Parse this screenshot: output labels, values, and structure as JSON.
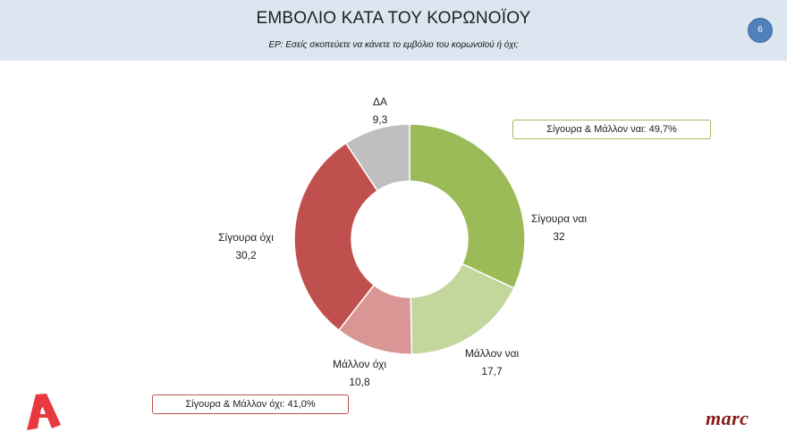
{
  "header": {
    "title": "ΕΜΒΟΛΙΟ ΚΑΤΑ ΤΟΥ ΚΟΡΩΝΟΪΟΥ",
    "subtitle": "ΕΡ: Εσείς σκοπεύετε να κάνετε το εμβόλιο του κορωνοϊού ή όχι;",
    "page_number": "6"
  },
  "summaries": {
    "yes": "Σίγουρα & Μάλλον ναι: 49,7%",
    "no": "Σίγουρα & Μάλλον όχι: 41,0%"
  },
  "labels": [
    {
      "name": "Σίγουρα ναι",
      "value": "32"
    },
    {
      "name": "Μάλλον ναι",
      "value": "17,7"
    },
    {
      "name": "Μάλλον όχι",
      "value": "10,8"
    },
    {
      "name": "Σίγουρα όχι",
      "value": "30,2"
    },
    {
      "name": "ΔΑ",
      "value": "9,3"
    }
  ],
  "logos": {
    "alpha": "alpha-tv-logo",
    "marc": "marc"
  },
  "chart_data": {
    "type": "pie",
    "subtype": "donut",
    "title": "ΕΜΒΟΛΙΟ ΚΑΤΑ ΤΟΥ ΚΟΡΩΝΟΪΟΥ",
    "subtitle": "ΕΡ: Εσείς σκοπεύετε να κάνετε το εμβόλιο του κορωνοϊού ή όχι;",
    "categories": [
      "Σίγουρα ναι",
      "Μάλλον ναι",
      "Μάλλον όχι",
      "Σίγουρα όχι",
      "ΔΑ"
    ],
    "values": [
      32,
      17.7,
      10.8,
      30.2,
      9.3
    ],
    "colors": [
      "#9bbb59",
      "#c3d69b",
      "#d99694",
      "#c0504d",
      "#bfbfbf"
    ],
    "start_angle": "12 o'clock, clockwise",
    "annotations": [
      "Σίγουρα & Μάλλον ναι: 49,7%",
      "Σίγουρα & Μάλλον όχι: 41,0%"
    ],
    "legend": "none (data labels)"
  }
}
